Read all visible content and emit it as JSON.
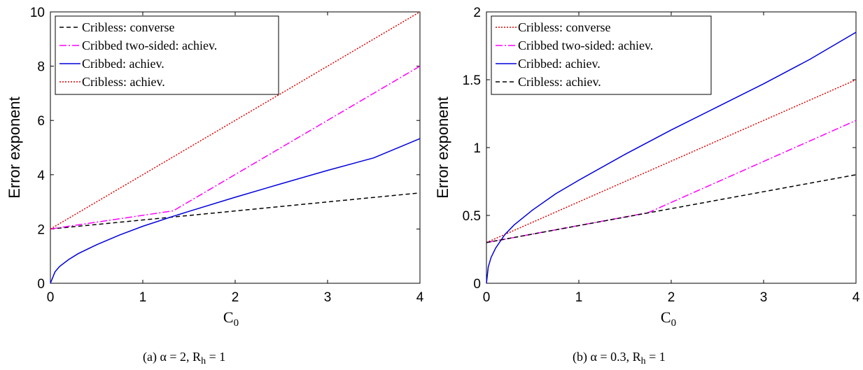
{
  "chart_data": [
    {
      "type": "line",
      "caption": "(a) α = 2, R",
      "caption_sub": "h",
      "caption_tail": " = 1",
      "xlabel": "C",
      "xlabel_sub": "0",
      "ylabel": "Error exponent",
      "xlim": [
        0,
        4
      ],
      "ylim": [
        0,
        10
      ],
      "xticks": [
        "0",
        "1",
        "2",
        "3",
        "4"
      ],
      "yticks": [
        "0",
        "2",
        "4",
        "6",
        "8",
        "10"
      ],
      "legend_position": "top-left",
      "series": [
        {
          "name": "Cribless: converse",
          "color": "#000000",
          "dash": "6,4",
          "x": [
            0,
            4
          ],
          "y": [
            2,
            3.33
          ]
        },
        {
          "name": "Cribbed two-sided: achiev.",
          "color": "#ff00ff",
          "dash": "10,3,2,3",
          "x": [
            0,
            1.33,
            4
          ],
          "y": [
            2,
            2.67,
            8
          ]
        },
        {
          "name": "Cribbed: achiev.",
          "color": "#0000dd",
          "dash": "",
          "x": [
            0,
            0.05,
            0.1,
            0.2,
            0.3,
            0.5,
            0.75,
            1,
            1.33,
            1.5,
            2,
            2.5,
            3,
            3.5,
            4
          ],
          "y": [
            0,
            0.42,
            0.62,
            0.88,
            1.09,
            1.42,
            1.78,
            2.1,
            2.47,
            2.65,
            3.17,
            3.67,
            4.16,
            4.62,
            5.33
          ]
        },
        {
          "name": "Cribless: achiev.",
          "color": "#dd0000",
          "dash": "2,2",
          "x": [
            0,
            4
          ],
          "y": [
            2,
            10
          ]
        }
      ]
    },
    {
      "type": "line",
      "caption": "(b) α = 0.3, R",
      "caption_sub": "h",
      "caption_tail": " = 1",
      "xlabel": "C",
      "xlabel_sub": "0",
      "ylabel": "Error exponent",
      "xlim": [
        0,
        4
      ],
      "ylim": [
        0,
        2
      ],
      "xticks": [
        "0",
        "1",
        "2",
        "3",
        "4"
      ],
      "yticks": [
        "0",
        "0.5",
        "1",
        "1.5",
        "2"
      ],
      "legend_position": "top-left",
      "series": [
        {
          "name": "Cribless: converse",
          "color": "#dd0000",
          "dash": "2,2",
          "x": [
            0,
            4
          ],
          "y": [
            0.3,
            1.5
          ]
        },
        {
          "name": "Cribbed two-sided: achiev.",
          "color": "#ff00ff",
          "dash": "10,3,2,3",
          "x": [
            0,
            1.75,
            4
          ],
          "y": [
            0.3,
            0.52,
            1.2
          ]
        },
        {
          "name": "Cribbed: achiev.",
          "color": "#0000dd",
          "dash": "",
          "x": [
            0,
            0.02,
            0.05,
            0.1,
            0.2,
            0.3,
            0.5,
            0.75,
            1,
            1.5,
            2,
            2.5,
            3,
            3.5,
            4
          ],
          "y": [
            0,
            0.12,
            0.19,
            0.26,
            0.36,
            0.43,
            0.54,
            0.66,
            0.76,
            0.95,
            1.13,
            1.3,
            1.47,
            1.65,
            1.85
          ]
        },
        {
          "name": "Cribless: achiev.",
          "color": "#000000",
          "dash": "6,4",
          "x": [
            0,
            4
          ],
          "y": [
            0.3,
            0.8
          ]
        }
      ]
    }
  ]
}
